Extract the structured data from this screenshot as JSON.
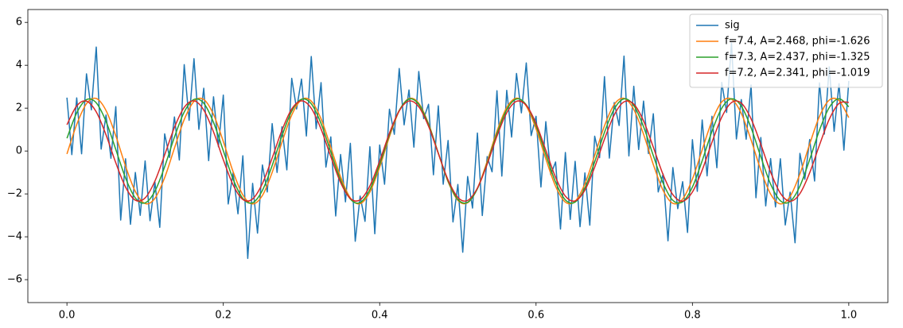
{
  "chart_data": {
    "type": "line",
    "xlim": [
      -0.05,
      1.05
    ],
    "ylim": [
      -7.07,
      6.6
    ],
    "xticks": [
      {
        "value": 0,
        "label": "0.0"
      },
      0.2,
      0.4,
      0.6,
      0.8,
      {
        "value": 1,
        "label": "1.0"
      }
    ],
    "yticks": [
      {
        "value": -6,
        "label": "−6"
      },
      {
        "value": -4,
        "label": "−4"
      },
      {
        "value": -2,
        "label": "−2"
      },
      0,
      2,
      4,
      6
    ],
    "legend": "upper right",
    "grid": false,
    "x": [
      0,
      0.0125,
      0.025,
      0.0375,
      0.05,
      0.0625,
      0.075,
      0.0875,
      0.1,
      0.1125,
      0.125,
      0.1375,
      0.15,
      0.1625,
      0.175,
      0.1875,
      0.2,
      0.2125,
      0.225,
      0.2375,
      0.25,
      0.2625,
      0.275,
      0.2875,
      0.3,
      0.3125,
      0.325,
      0.3375,
      0.35,
      0.3625,
      0.375,
      0.3875,
      0.4,
      0.4125,
      0.425,
      0.4375,
      0.45,
      0.4625,
      0.475,
      0.4875,
      0.5,
      0.5125,
      0.525,
      0.5375,
      0.55,
      0.5625,
      0.575,
      0.5875,
      0.6,
      0.6125,
      0.625,
      0.6375,
      0.65,
      0.6625,
      0.675,
      0.6875,
      0.7,
      0.7125,
      0.725,
      0.7375,
      0.75,
      0.7625,
      0.775,
      0.7875,
      0.8,
      0.8125,
      0.825,
      0.8375,
      0.85,
      0.8625,
      0.875,
      0.8875,
      0.9,
      0.9125,
      0.925,
      0.9375,
      0.95,
      0.9625,
      0.975,
      0.9875,
      1
    ],
    "series": [
      {
        "name": "sig",
        "color": "#1f77b4",
        "x": [
          0,
          0.00625,
          0.0125,
          0.01875,
          0.025,
          0.03125,
          0.0375,
          0.04375,
          0.05,
          0.05625,
          0.0625,
          0.06875,
          0.075,
          0.08125,
          0.0875,
          0.09375,
          0.1,
          0.10625,
          0.1125,
          0.11875,
          0.125,
          0.13125,
          0.1375,
          0.14375,
          0.15,
          0.15625,
          0.1625,
          0.16875,
          0.175,
          0.18125,
          0.1875,
          0.19375,
          0.2,
          0.20625,
          0.2125,
          0.21875,
          0.225,
          0.23125,
          0.2375,
          0.24375,
          0.25,
          0.25625,
          0.2625,
          0.26875,
          0.275,
          0.28125,
          0.2875,
          0.29375,
          0.3,
          0.30625,
          0.3125,
          0.31875,
          0.325,
          0.33125,
          0.3375,
          0.34375,
          0.35,
          0.35625,
          0.3625,
          0.36875,
          0.375,
          0.38125,
          0.3875,
          0.39375,
          0.4,
          0.40625,
          0.4125,
          0.41875,
          0.425,
          0.43125,
          0.4375,
          0.44375,
          0.45,
          0.45625,
          0.4625,
          0.46875,
          0.475,
          0.48125,
          0.4875,
          0.49375,
          0.5,
          0.50625,
          0.5125,
          0.51875,
          0.525,
          0.53125,
          0.5375,
          0.54375,
          0.55,
          0.55625,
          0.5625,
          0.56875,
          0.575,
          0.58125,
          0.5875,
          0.59375,
          0.6,
          0.60625,
          0.6125,
          0.61875,
          0.625,
          0.63125,
          0.6375,
          0.64375,
          0.65,
          0.65625,
          0.6625,
          0.66875,
          0.675,
          0.68125,
          0.6875,
          0.69375,
          0.7,
          0.70625,
          0.7125,
          0.71875,
          0.725,
          0.73125,
          0.7375,
          0.74375,
          0.75,
          0.75625,
          0.7625,
          0.76875,
          0.775,
          0.78125,
          0.7875,
          0.79375,
          0.8,
          0.80625,
          0.8125,
          0.81875,
          0.825,
          0.83125,
          0.8375,
          0.84375,
          0.85,
          0.85625,
          0.8625,
          0.86875,
          0.875,
          0.88125,
          0.8875,
          0.89375,
          0.9,
          0.90625,
          0.9125,
          0.91875,
          0.925,
          0.93125,
          0.9375,
          0.94375,
          0.95,
          0.95625,
          0.9625,
          0.96875,
          0.975,
          0.98125,
          0.9875,
          0.99375,
          1
        ],
        "values": [
          2.49,
          -0.17,
          2.48,
          -0.13,
          3.6,
          1.92,
          4.85,
          0.09,
          1.68,
          -0.34,
          2.07,
          -3.22,
          -0.36,
          -3.42,
          -1.0,
          -3.0,
          -0.46,
          -3.25,
          -1.44,
          -3.56,
          0.8,
          -0.3,
          1.59,
          -0.42,
          4.03,
          1.43,
          4.31,
          1.01,
          2.93,
          -0.45,
          2.53,
          0.2,
          2.61,
          -2.47,
          -1.01,
          -2.93,
          -0.22,
          -5.01,
          -1.51,
          -3.83,
          -0.65,
          -1.91,
          1.28,
          -1.0,
          1.13,
          -0.88,
          3.39,
          1.96,
          3.36,
          0.7,
          4.41,
          1.04,
          3.19,
          -0.75,
          0.66,
          -3.03,
          -0.16,
          -2.37,
          0.36,
          -4.21,
          -2.1,
          -3.28,
          0.2,
          -3.86,
          0.28,
          -1.55,
          1.95,
          0.78,
          3.85,
          1.22,
          2.85,
          0.18,
          3.71,
          1.51,
          2.18,
          -1.11,
          2.11,
          -1.55,
          0.49,
          -3.31,
          -1.56,
          -4.72,
          -1.19,
          -2.66,
          0.84,
          -3.01,
          -0.26,
          -0.97,
          2.81,
          -1.17,
          2.83,
          0.65,
          3.62,
          1.78,
          4.11,
          0.72,
          1.62,
          -1.68,
          1.37,
          -1.1,
          -0.51,
          -3.64,
          -0.07,
          -3.19,
          -0.48,
          -3.53,
          -1.02,
          -3.46,
          0.69,
          -0.31,
          3.47,
          -0.33,
          2.26,
          1.19,
          4.43,
          -0.23,
          3.02,
          0.07,
          2.33,
          -0.12,
          1.74,
          -1.91,
          -1.07,
          -4.19,
          -0.77,
          -2.69,
          -1.43,
          -3.8,
          0.53,
          -1.88,
          1.45,
          -1.16,
          1.62,
          -0.78,
          3.2,
          1.8,
          5.04,
          0.56,
          2.4,
          0.55,
          3.08,
          -2.18,
          0.63,
          -2.56,
          -0.35,
          -2.61,
          -0.36,
          -3.45,
          -1.92,
          -4.28,
          -0.11,
          -1.32,
          0.54,
          -1.4,
          3.18,
          0.79,
          3.93,
          0.92,
          3.14,
          0.04,
          3.27
        ]
      },
      {
        "name": "f=7.4, A=2.468, phi=-1.626",
        "color": "#ff7f0e",
        "values": [
          -0.136,
          1.239,
          2.208,
          2.451,
          1.889,
          0.708,
          -0.707,
          -1.888,
          -2.451,
          -2.208,
          -1.24,
          0.135,
          1.466,
          2.315,
          2.404,
          1.704,
          0.444,
          -0.962,
          -2.052,
          -2.468,
          -2.074,
          -0.998,
          0.405,
          1.675,
          2.395,
          2.329,
          1.498,
          0.175,
          -1.205,
          -2.19,
          -2.455,
          -1.914,
          -0.745,
          0.67,
          1.864,
          2.446,
          2.225,
          1.273,
          -0.096,
          -1.435,
          -2.301,
          -2.413,
          -1.733,
          -0.482,
          0.926,
          2.03,
          2.467,
          2.094,
          1.034,
          -0.367,
          -1.646,
          -2.386,
          -2.341,
          -1.529,
          -0.213,
          1.172,
          2.172,
          2.459,
          1.939,
          0.782,
          -0.632,
          -1.837,
          -2.441,
          -2.242,
          -1.306,
          0.058,
          1.403,
          2.287,
          2.421,
          1.759,
          0.52,
          -0.89,
          -2.008,
          -2.466,
          -2.115,
          -1.069,
          0.328,
          1.617,
          2.375,
          2.353,
          1.558
        ]
      },
      {
        "name": "f=7.3, A=2.437, phi=-1.325",
        "color": "#2ca02c",
        "values": [
          0.593,
          1.78,
          2.398,
          2.249,
          1.381,
          0.071,
          -1.262,
          -2.191,
          -2.419,
          -1.874,
          -0.73,
          0.648,
          1.819,
          2.408,
          2.227,
          1.333,
          0.014,
          -1.311,
          -2.215,
          -2.412,
          -1.837,
          -0.675,
          0.704,
          1.857,
          2.416,
          2.203,
          1.285,
          -0.044,
          -1.358,
          -2.239,
          -2.403,
          -1.799,
          -0.619,
          0.758,
          1.894,
          2.423,
          2.177,
          1.236,
          -0.101,
          -1.406,
          -2.261,
          -2.393,
          -1.759,
          -0.563,
          0.813,
          1.929,
          2.428,
          2.151,
          1.186,
          -0.159,
          -1.452,
          -2.282,
          -2.381,
          -1.719,
          -0.507,
          0.867,
          1.963,
          2.433,
          2.124,
          1.135,
          -0.216,
          -1.499,
          -2.301,
          -2.368,
          -1.678,
          -0.451,
          0.92,
          1.997,
          2.435,
          2.095,
          1.084,
          -0.273,
          -1.544,
          -2.319,
          -2.354,
          -1.636,
          -0.395,
          0.973,
          2.03,
          2.437,
          2.065
        ]
      },
      {
        "name": "f=7.2, A=2.341, phi=-1.019",
        "color": "#d62728",
        "values": [
          1.227,
          2.104,
          2.326,
          1.824,
          0.754,
          -0.551,
          -1.684,
          -2.293,
          -2.188,
          -1.402,
          -0.179,
          1.1,
          2.036,
          2.338,
          1.912,
          0.891,
          -0.407,
          -1.579,
          -2.259,
          -2.236,
          -1.516,
          -0.325,
          0.968,
          1.959,
          2.341,
          1.994,
          1.026,
          -0.262,
          -1.467,
          -2.216,
          -2.275,
          -1.625,
          -0.47,
          0.832,
          1.875,
          2.334,
          2.067,
          1.156,
          -0.115,
          -1.35,
          -2.165,
          -2.305,
          -1.728,
          -0.613,
          0.693,
          1.784,
          2.318,
          2.131,
          1.281,
          0.032,
          -1.228,
          -2.105,
          -2.326,
          -1.824,
          -0.754,
          0.551,
          1.684,
          2.293,
          2.188,
          1.402,
          0.179,
          -1.1,
          -2.036,
          -2.338,
          -1.912,
          -0.891,
          0.407,
          1.579,
          2.259,
          2.236,
          1.504,
          0.309,
          -0.983,
          -1.968,
          -2.341,
          -1.985,
          -1.011,
          0.278,
          1.48,
          2.222,
          2.271
        ]
      }
    ]
  }
}
